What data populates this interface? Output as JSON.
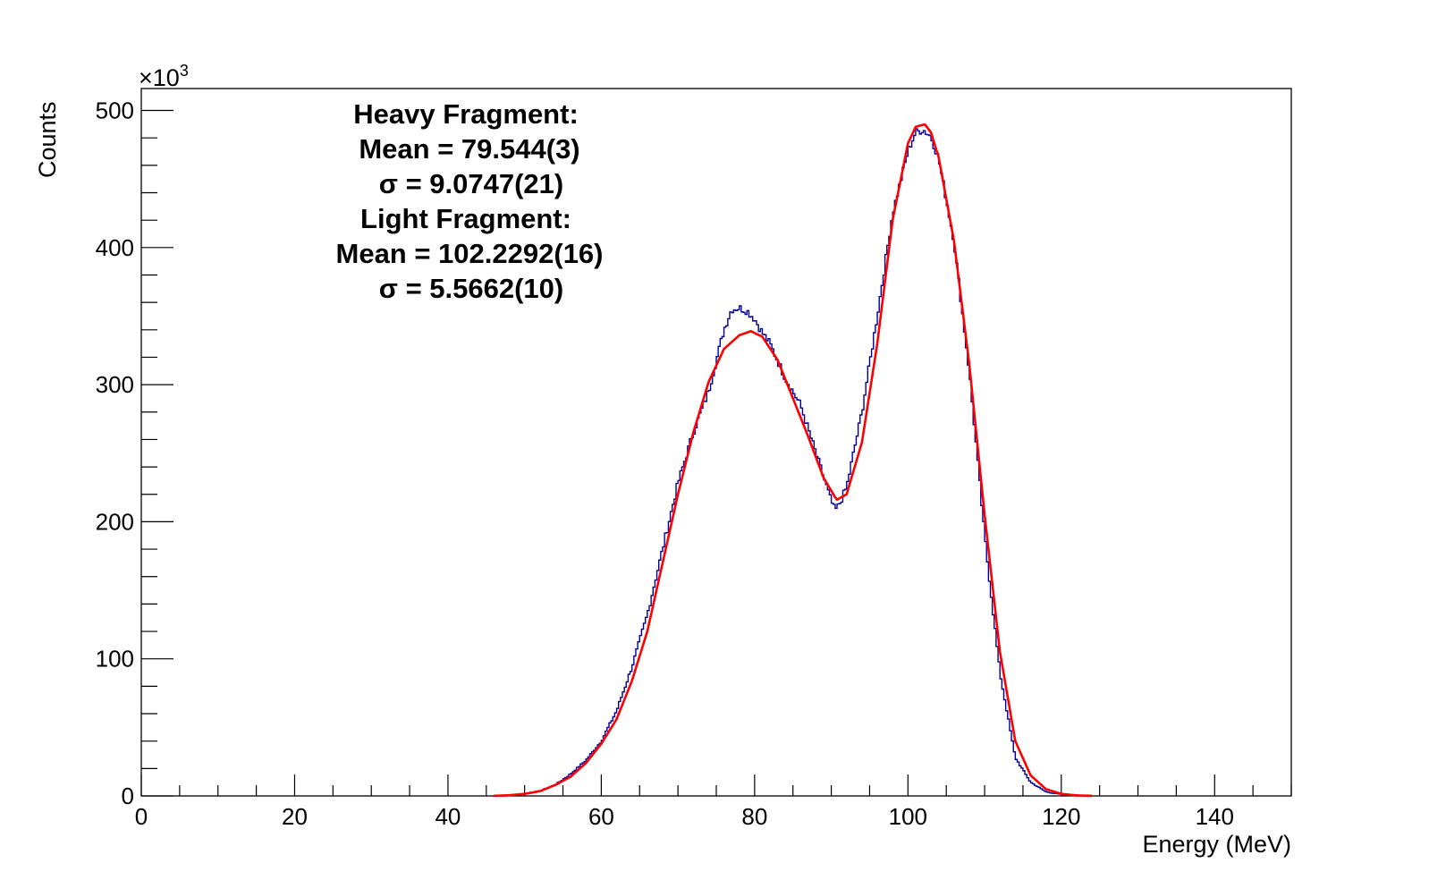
{
  "chart_data": {
    "type": "line",
    "xlabel": "Energy (MeV)",
    "ylabel": "Counts",
    "y_multiplier_label": "×10",
    "y_multiplier_exp": "3",
    "xlim": [
      0,
      150
    ],
    "ylim": [
      0,
      516
    ],
    "x_major_ticks": [
      0,
      20,
      40,
      60,
      80,
      100,
      120,
      140
    ],
    "x_tick_labels": [
      "0",
      "20",
      "40",
      "60",
      "80",
      "100",
      "120",
      "140"
    ],
    "y_major_ticks": [
      0,
      100,
      200,
      300,
      400,
      500
    ],
    "y_tick_labels": [
      "0",
      "100",
      "200",
      "300",
      "400",
      "500"
    ],
    "grid": false,
    "annotation": [
      "Heavy Fragment:",
      "Mean = 79.544(3)",
      "σ = 9.0747(21)",
      "Light Fragment:",
      "Mean = 102.2292(16)",
      "σ = 5.5662(10)"
    ],
    "colors": {
      "histogram": "#000099",
      "fit": "#ff0000",
      "axes": "#000000"
    },
    "histogram": {
      "x": [
        46,
        48,
        50,
        52,
        54,
        56,
        58,
        60,
        62,
        64,
        66,
        68,
        70,
        72,
        74,
        76,
        77,
        78,
        79,
        80,
        81,
        82,
        84,
        86,
        88,
        90,
        90.5,
        91,
        92,
        94,
        96,
        98,
        100,
        101,
        102,
        103,
        104,
        106,
        108,
        110,
        112,
        114,
        116,
        118,
        120,
        122,
        124
      ],
      "y": [
        0.2,
        0.6,
        1.5,
        3.6,
        8,
        16,
        26,
        40,
        62,
        94,
        132,
        180,
        228,
        265,
        295,
        340,
        355,
        356,
        354,
        348,
        338,
        330,
        305,
        285,
        250,
        215,
        208,
        212,
        225,
        280,
        350,
        425,
        470,
        484,
        486,
        481,
        465,
        405,
        310,
        190,
        90,
        28,
        10,
        3,
        1,
        0.3,
        0.1
      ]
    },
    "fit": {
      "x": [
        46,
        48,
        50,
        52,
        54,
        56,
        58,
        60,
        62,
        64,
        66,
        68,
        70,
        72,
        74,
        76,
        78,
        79.5,
        81,
        83,
        85,
        87,
        89,
        90.7,
        92,
        94,
        96,
        98,
        100,
        101,
        102.2,
        103,
        104,
        106,
        108,
        110,
        112,
        114,
        116,
        118,
        120,
        122,
        124
      ],
      "y": [
        0.1,
        0.5,
        1.5,
        3.5,
        8,
        14,
        24,
        38,
        56,
        84,
        120,
        170,
        220,
        265,
        302,
        326,
        336,
        339,
        335,
        318,
        290,
        262,
        232,
        216,
        220,
        258,
        330,
        420,
        476,
        488,
        490,
        484,
        466,
        405,
        315,
        205,
        105,
        40,
        15,
        5,
        1.5,
        0.4,
        0.1
      ]
    }
  }
}
